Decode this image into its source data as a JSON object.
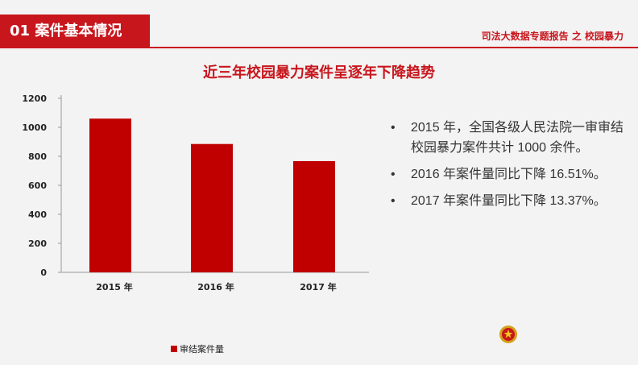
{
  "header": {
    "section_label": "01 案件基本情况",
    "report_title": "司法大数据专题报告 之 校园暴力"
  },
  "main": {
    "chart_title": "近三年校园暴力案件呈逐年下降趋势",
    "bullets": [
      "2015 年，全国各级人民法院一审审结校园暴力案件共计 1000 余件。",
      "2016 年案件量同比下降 16.51%。",
      "2017 年案件量同比下降 13.37%。"
    ],
    "bullet_symbol": "•"
  },
  "chart_data": {
    "type": "bar",
    "title": "",
    "categories": [
      "2015 年",
      "2016 年",
      "2017 年"
    ],
    "series": [
      {
        "name": "审结案件量",
        "values": [
          1060,
          885,
          767
        ]
      }
    ],
    "yticks": [
      0,
      200,
      400,
      600,
      800,
      1000,
      1200
    ],
    "ylim": [
      0,
      1200
    ],
    "xlabel": "",
    "ylabel": "",
    "grid": false,
    "legend": "bottom-left",
    "bar_color": "#c00000"
  },
  "colors": {
    "accent": "#c8161d",
    "bar": "#c00000",
    "background": "#f3f3f3"
  },
  "icons": {
    "emblem": "national-emblem-icon"
  }
}
